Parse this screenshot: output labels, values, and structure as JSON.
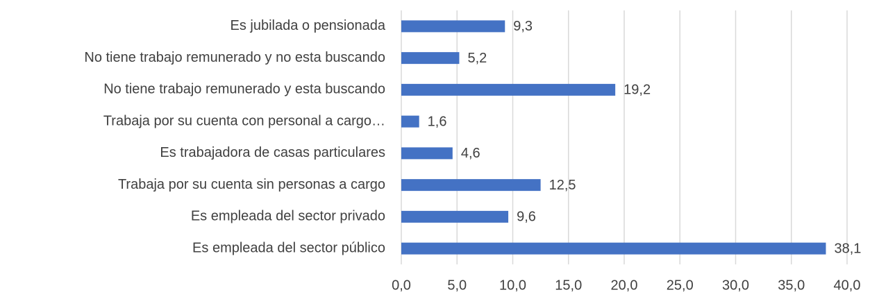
{
  "chart_data": {
    "type": "hbar",
    "categories": [
      "Es jubilada o pensionada",
      "No tiene trabajo remunerado y no esta buscando",
      "No tiene trabajo remunerado y esta buscando",
      "Trabaja por su cuenta con personal a cargo…",
      "Es trabajadora de casas particulares",
      "Trabaja por su cuenta sin personas a cargo",
      "Es empleada del sector privado",
      "Es empleada del sector público"
    ],
    "values": [
      9.3,
      5.2,
      19.2,
      1.6,
      4.6,
      12.5,
      9.6,
      38.1
    ],
    "value_labels": [
      "9,3",
      "5,2",
      "19,2",
      "1,6",
      "4,6",
      "12,5",
      "9,6",
      "38,1"
    ],
    "color": "#4472c4",
    "xlim": [
      0,
      40
    ],
    "xticks": [
      {
        "value": 0,
        "label": "0,0"
      },
      {
        "value": 5,
        "label": "5,0"
      },
      {
        "value": 10,
        "label": "10,0"
      },
      {
        "value": 15,
        "label": "15,0"
      },
      {
        "value": 20,
        "label": "20,0"
      },
      {
        "value": 25,
        "label": "25,0"
      },
      {
        "value": 30,
        "label": "30,0"
      },
      {
        "value": 35,
        "label": "35,0"
      },
      {
        "value": 40,
        "label": "40,0"
      }
    ],
    "grid": true
  }
}
